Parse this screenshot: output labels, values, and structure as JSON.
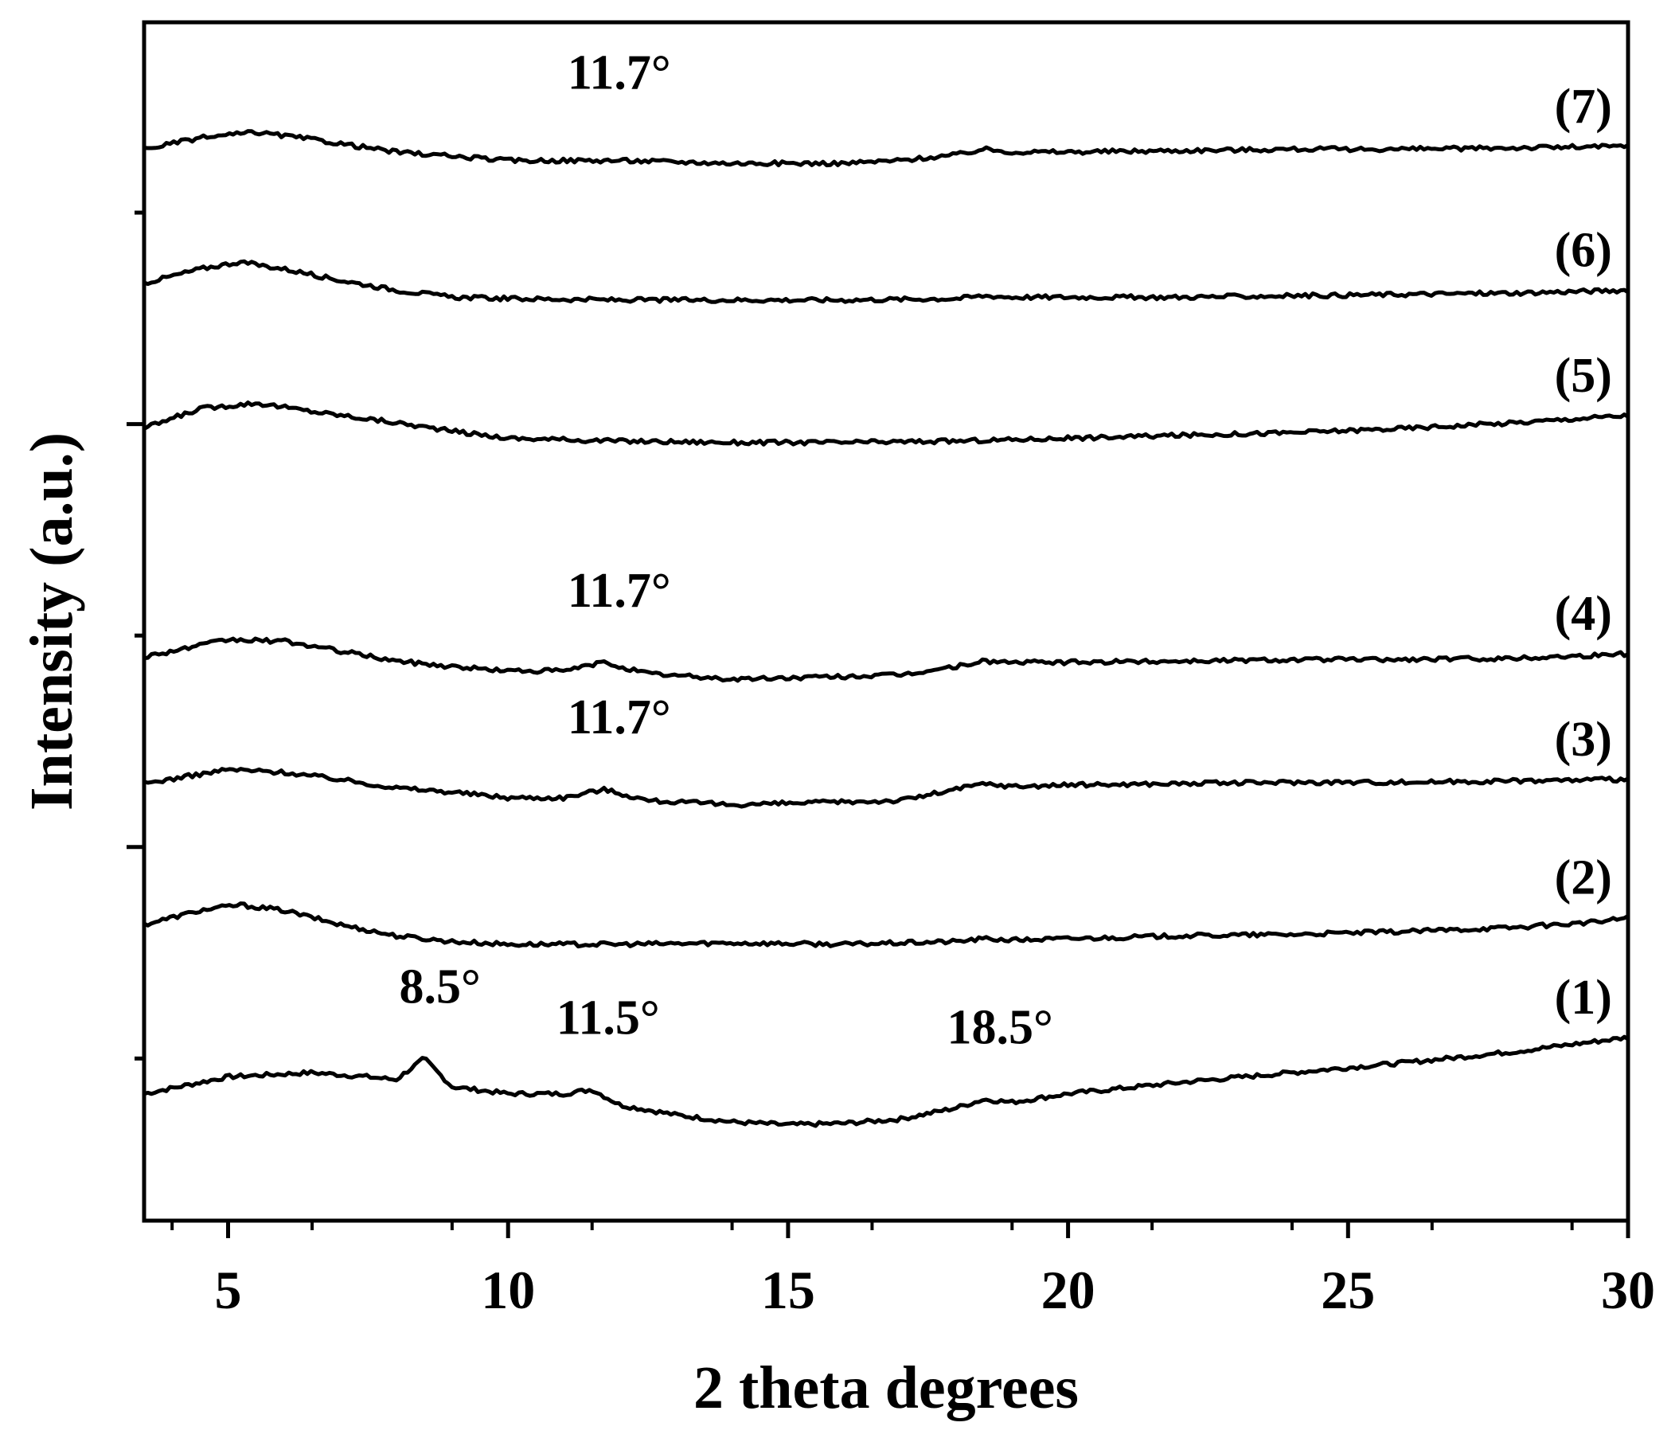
{
  "chart_data": {
    "type": "line",
    "title": "",
    "xlabel": "2 theta degrees",
    "ylabel": "Intensity (a.u.)",
    "xlim": [
      3.5,
      30
    ],
    "xticks": [
      "5",
      "10",
      "15",
      "20",
      "25",
      "30"
    ],
    "y_units": "arbitrary (offset traces)",
    "grid": false,
    "legend": "none",
    "series": [
      {
        "name": "(1)",
        "x": [
          3.5,
          5,
          6.5,
          7.5,
          8.0,
          8.5,
          9.0,
          10,
          11,
          11.5,
          12,
          13,
          14,
          15,
          16,
          17,
          18,
          18.5,
          19,
          20,
          22,
          24,
          26,
          28,
          29,
          30
        ],
        "y": [
          0.9,
          1.02,
          1.05,
          1.02,
          1.0,
          1.15,
          0.95,
          0.9,
          0.9,
          0.93,
          0.82,
          0.75,
          0.7,
          0.68,
          0.69,
          0.72,
          0.8,
          0.86,
          0.84,
          0.9,
          0.98,
          1.05,
          1.12,
          1.2,
          1.25,
          1.3
        ]
      },
      {
        "name": "(2)",
        "x": [
          3.5,
          4.5,
          5.2,
          6,
          7,
          8,
          9,
          10,
          12,
          14,
          16,
          18,
          18.5,
          19,
          20,
          22,
          24,
          26,
          28,
          29.5,
          30
        ],
        "y": [
          2.1,
          2.2,
          2.24,
          2.2,
          2.1,
          2.02,
          1.98,
          1.96,
          1.96,
          1.97,
          1.96,
          1.98,
          2.0,
          1.99,
          2.0,
          2.02,
          2.03,
          2.05,
          2.08,
          2.12,
          2.15
        ]
      },
      {
        "name": "(3)",
        "x": [
          3.5,
          5,
          6,
          7,
          8,
          9,
          10,
          11,
          11.7,
          12.5,
          14,
          15,
          16,
          17,
          18,
          18.5,
          19,
          20,
          22,
          24,
          26,
          28,
          30
        ],
        "y": [
          3.1,
          3.2,
          3.18,
          3.13,
          3.07,
          3.04,
          3.0,
          3.0,
          3.06,
          2.98,
          2.95,
          2.96,
          2.97,
          2.98,
          3.06,
          3.1,
          3.08,
          3.09,
          3.1,
          3.11,
          3.11,
          3.12,
          3.13
        ]
      },
      {
        "name": "(4)",
        "x": [
          3.5,
          5,
          6,
          7,
          8,
          9,
          10,
          11,
          11.7,
          12.5,
          14,
          15,
          16,
          17,
          18,
          18.5,
          19,
          20,
          22,
          24,
          26,
          28,
          30
        ],
        "y": [
          4.0,
          4.12,
          4.11,
          4.04,
          3.97,
          3.93,
          3.9,
          3.9,
          3.96,
          3.88,
          3.84,
          3.85,
          3.86,
          3.87,
          3.93,
          3.97,
          3.96,
          3.96,
          3.97,
          3.98,
          3.98,
          3.99,
          4.02
        ]
      },
      {
        "name": "(5)",
        "x": [
          3.5,
          4.5,
          5.5,
          6.5,
          8,
          9,
          10,
          12,
          14,
          16,
          18,
          20,
          22,
          24,
          26,
          28,
          29.5,
          30
        ],
        "y": [
          5.62,
          5.76,
          5.8,
          5.74,
          5.66,
          5.6,
          5.55,
          5.53,
          5.52,
          5.52,
          5.53,
          5.55,
          5.57,
          5.59,
          5.62,
          5.66,
          5.7,
          5.71
        ]
      },
      {
        "name": "(6)",
        "x": [
          3.5,
          4.5,
          5.2,
          6,
          7,
          8,
          9,
          10,
          12,
          14,
          16,
          18,
          18.5,
          19,
          20,
          22,
          24,
          26,
          28,
          30
        ],
        "y": [
          6.65,
          6.75,
          6.8,
          6.75,
          6.67,
          6.6,
          6.55,
          6.54,
          6.53,
          6.53,
          6.53,
          6.54,
          6.56,
          6.55,
          6.55,
          6.55,
          6.56,
          6.57,
          6.58,
          6.6
        ]
      },
      {
        "name": "(7)",
        "x": [
          3.5,
          4.5,
          5.5,
          6.5,
          8,
          9,
          10,
          11,
          12,
          13,
          14,
          15,
          16,
          17,
          18,
          18.5,
          19,
          20,
          22,
          24,
          26,
          28,
          30
        ],
        "y": [
          7.6,
          7.68,
          7.72,
          7.67,
          7.58,
          7.55,
          7.52,
          7.52,
          7.52,
          7.51,
          7.5,
          7.5,
          7.5,
          7.52,
          7.56,
          7.6,
          7.58,
          7.58,
          7.59,
          7.6,
          7.6,
          7.61,
          7.62
        ]
      }
    ],
    "annotations": [
      {
        "text": "11.7°",
        "series": "(7)",
        "x": 11.7
      },
      {
        "text": "11.7°",
        "series": "(4)",
        "x": 11.7
      },
      {
        "text": "11.7°",
        "series": "(3)",
        "x": 11.7
      },
      {
        "text": "8.5°",
        "series": "(1)",
        "x": 8.5
      },
      {
        "text": "11.5°",
        "series": "(1)",
        "x": 11.5
      },
      {
        "text": "18.5°",
        "series": "(1)",
        "x": 18.5
      }
    ],
    "colors": {
      "line": "#000000",
      "background": "#ffffff"
    }
  }
}
